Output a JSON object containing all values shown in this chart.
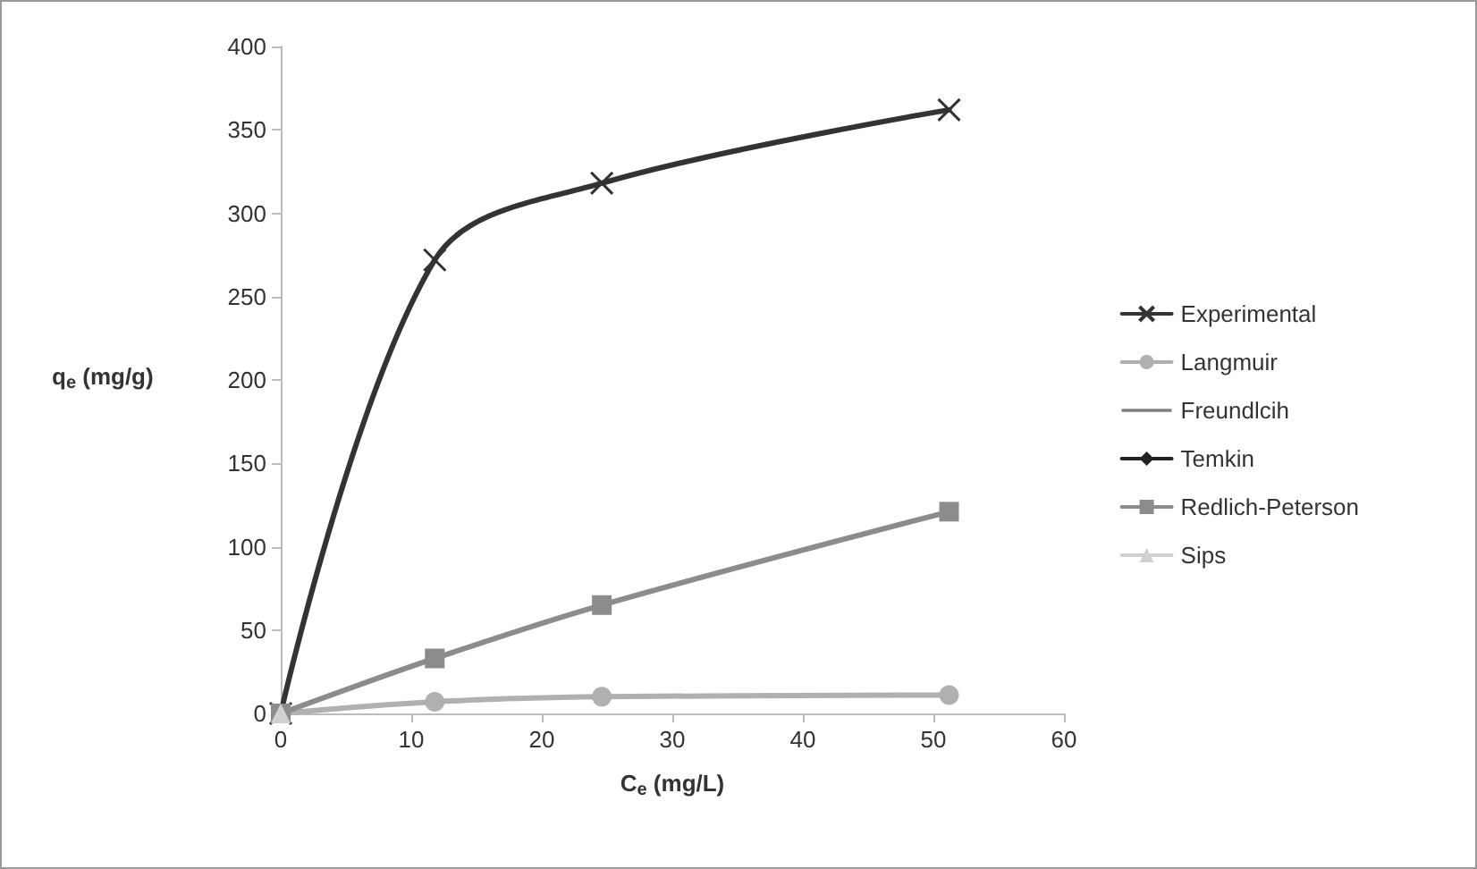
{
  "chart_data": {
    "type": "line",
    "xlabel": "C$_{e}$ (mg/L)",
    "ylabel": "q$_{e}$ (mg/g)",
    "x": [
      0,
      11.8,
      24.6,
      51.2
    ],
    "series": [
      {
        "name": "Experimental",
        "color": "#333333",
        "marker": "cross",
        "values": [
          0,
          272,
          318,
          362
        ]
      },
      {
        "name": "Langmuir",
        "color": "#b0b0b0",
        "marker": "circle",
        "values": [
          0,
          7,
          10,
          11
        ]
      },
      {
        "name": "Freundlcih",
        "color": "#7f7f7f",
        "marker": "none",
        "values": [
          null,
          null,
          null,
          null
        ]
      },
      {
        "name": "Temkin",
        "color": "#222222",
        "marker": "diamond",
        "values": [
          null,
          null,
          null,
          null
        ]
      },
      {
        "name": "Redlich-Peterson",
        "color": "#8c8c8c",
        "marker": "square",
        "values": [
          0,
          33,
          65,
          121
        ]
      },
      {
        "name": "Sips",
        "color": "#d0d0d0",
        "marker": "triangle",
        "values": [
          0,
          null,
          null,
          null
        ]
      }
    ],
    "xlim": [
      0,
      60
    ],
    "xticks": [
      0,
      10,
      20,
      30,
      40,
      50,
      60
    ],
    "ylim": [
      0,
      400
    ],
    "yticks": [
      0,
      50,
      100,
      150,
      200,
      250,
      300,
      350,
      400
    ],
    "grid": false,
    "legend": "right"
  }
}
